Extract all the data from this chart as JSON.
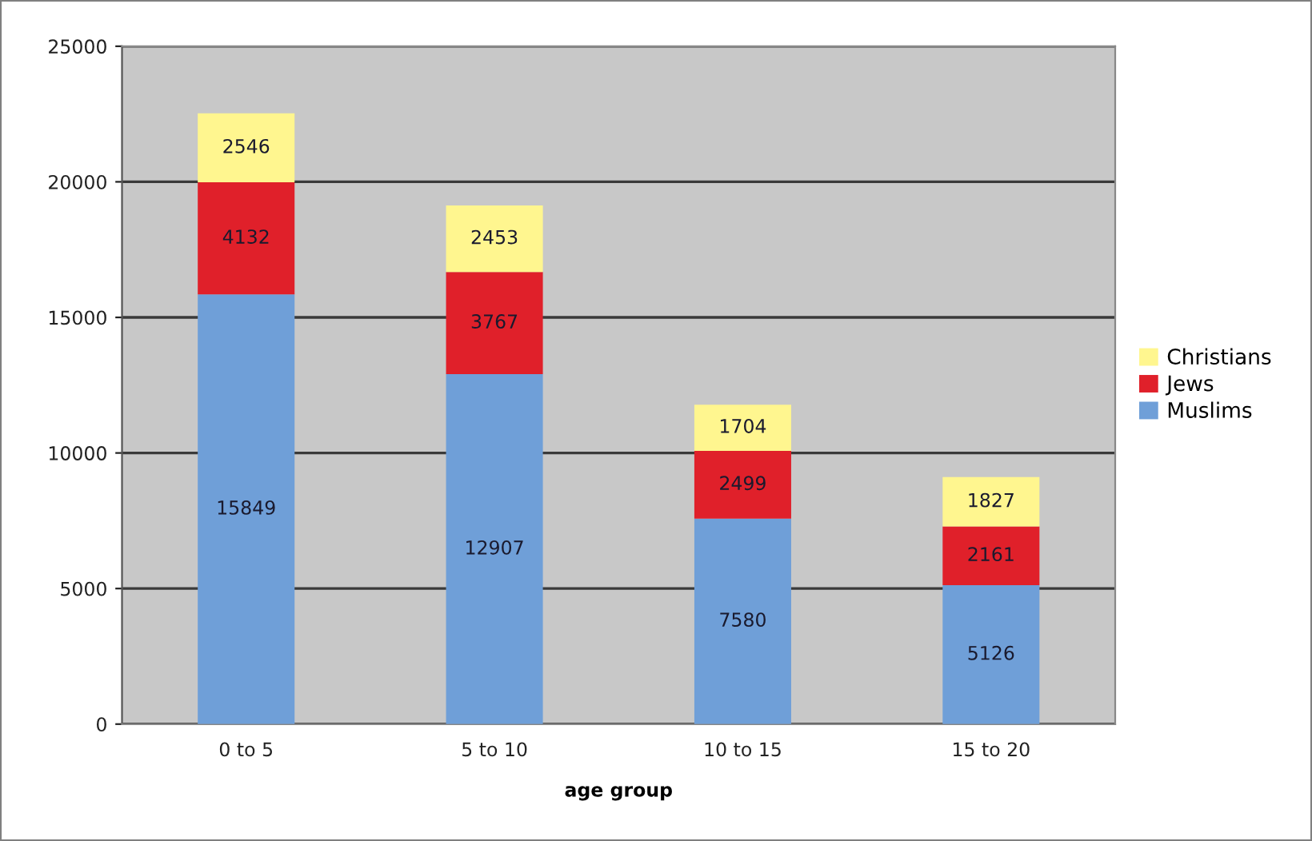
{
  "chart_data": {
    "type": "bar",
    "stacked": true,
    "xlabel": "age group",
    "categories": [
      "0 to 5",
      "5 to 10",
      "10 to 15",
      "15 to 20"
    ],
    "series": [
      {
        "name": "Muslims",
        "color": "#6f9fd8",
        "values": [
          15849,
          12907,
          7580,
          5126
        ]
      },
      {
        "name": "Jews",
        "color": "#e0202a",
        "values": [
          4132,
          3767,
          2499,
          2161
        ]
      },
      {
        "name": "Christians",
        "color": "#fff68f",
        "values": [
          2546,
          2453,
          1704,
          1827
        ]
      }
    ],
    "ylim": [
      0,
      25000
    ],
    "yticks": [
      0,
      5000,
      10000,
      15000,
      20000,
      25000
    ],
    "grid": "y",
    "legend": "right",
    "data_labels": true
  }
}
